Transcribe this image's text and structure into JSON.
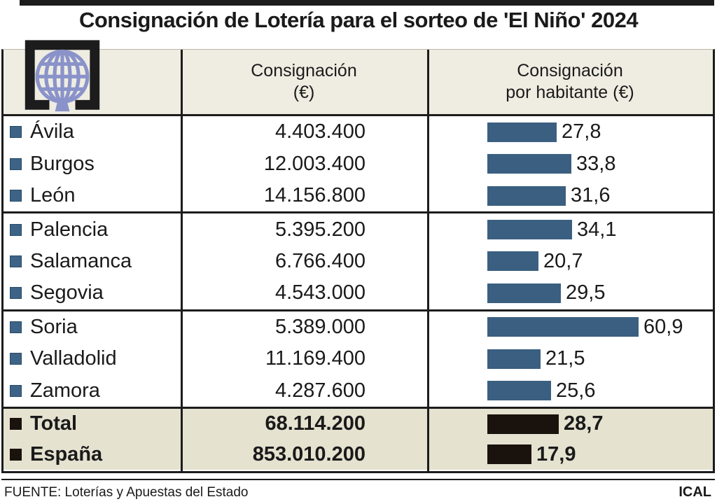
{
  "title": "Consignación de Lotería para el sorteo de 'El Niño' 2024",
  "logo": {
    "name": "Loterías y Apuestas del Estado"
  },
  "columns": {
    "col2_line1": "Consignación",
    "col2_line2": "(€)",
    "col3_line1": "Consignación",
    "col3_line2": "por habitante (€)"
  },
  "rows": [
    {
      "label": "Ávila",
      "consignacion": "4.403.400",
      "per_habitante": "27,8",
      "per_habitante_value": 27.8
    },
    {
      "label": "Burgos",
      "consignacion": "12.003.400",
      "per_habitante": "33,8",
      "per_habitante_value": 33.8
    },
    {
      "label": "León",
      "consignacion": "14.156.800",
      "per_habitante": "31,6",
      "per_habitante_value": 31.6
    },
    {
      "label": "Palencia",
      "consignacion": "5.395.200",
      "per_habitante": "34,1",
      "per_habitante_value": 34.1
    },
    {
      "label": "Salamanca",
      "consignacion": "6.766.400",
      "per_habitante": "20,7",
      "per_habitante_value": 20.7
    },
    {
      "label": "Segovia",
      "consignacion": "4.543.000",
      "per_habitante": "29,5",
      "per_habitante_value": 29.5
    },
    {
      "label": "Soria",
      "consignacion": "5.389.000",
      "per_habitante": "60,9",
      "per_habitante_value": 60.9
    },
    {
      "label": "Valladolid",
      "consignacion": "11.169.400",
      "per_habitante": "21,5",
      "per_habitante_value": 21.5
    },
    {
      "label": "Zamora",
      "consignacion": "4.287.600",
      "per_habitante": "25,6",
      "per_habitante_value": 25.6
    }
  ],
  "totals": [
    {
      "label": "Total",
      "consignacion": "68.114.200",
      "per_habitante": "28,7",
      "per_habitante_value": 28.7
    },
    {
      "label": "España",
      "consignacion": "853.010.200",
      "per_habitante": "17,9",
      "per_habitante_value": 17.9
    }
  ],
  "footer": {
    "source": "FUENTE: Loterías y Apuestas del Estado",
    "credit": "ICAL"
  },
  "colors": {
    "bar_blue": "#3a5f80",
    "bar_black": "#1a120c",
    "header_beige": "#efede2",
    "totals_beige": "#e5e2d0",
    "logo_globe": "#8a93c9",
    "frame_black": "#1c1c1c"
  },
  "chart_data": {
    "type": "bar",
    "orientation": "horizontal",
    "title": "Consignación de Lotería para el sorteo de 'El Niño' 2024",
    "categories": [
      "Ávila",
      "Burgos",
      "León",
      "Palencia",
      "Salamanca",
      "Segovia",
      "Soria",
      "Valladolid",
      "Zamora",
      "Total",
      "España"
    ],
    "series": [
      {
        "name": "Consignación (€)",
        "values": [
          4403400,
          12003400,
          14156800,
          5395200,
          6766400,
          4543000,
          5389000,
          11169400,
          4287600,
          68114200,
          853010200
        ]
      },
      {
        "name": "Consignación por habitante (€)",
        "values": [
          27.8,
          33.8,
          31.6,
          34.1,
          20.7,
          29.5,
          60.9,
          21.5,
          25.6,
          28.7,
          17.9
        ]
      }
    ],
    "bar_value_labels_shown": true,
    "xlim": [
      0,
      60.9
    ],
    "grid": false,
    "legend_position": "none",
    "source": "FUENTE: Loterías y Apuestas del Estado",
    "credit": "ICAL"
  }
}
